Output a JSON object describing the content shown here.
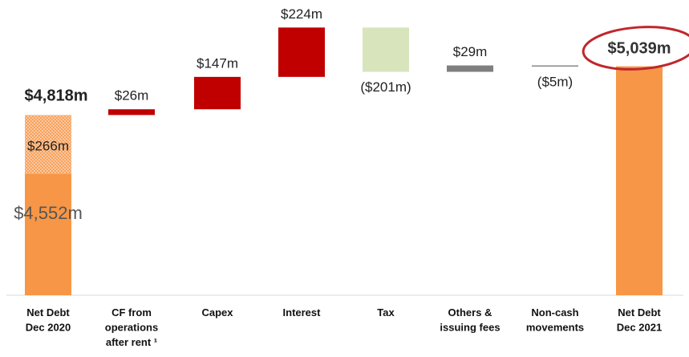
{
  "chart_data": {
    "type": "waterfall",
    "categories": [
      "Net Debt\nDec 2020",
      "CF from\noperations\nafter rent ¹",
      "Capex",
      "Interest",
      "Tax",
      "Others &\nissuing fees",
      "Non-cash\nmovements",
      "Net Debt\nDec 2021"
    ],
    "values": [
      4818,
      26,
      147,
      224,
      -201,
      29,
      -5,
      5039
    ],
    "value_labels": [
      "$4,818m",
      "$26m",
      "$147m",
      "$224m",
      "($201m)",
      "$29m",
      "($5m)",
      "$5,039m"
    ],
    "colors": [
      "#f79646",
      "#c00000",
      "#c00000",
      "#c00000",
      "#d8e4bc",
      "#7f7f7f",
      "#7f7f7f",
      "#f79646"
    ],
    "start_breakdown": {
      "values": [
        4552,
        266
      ],
      "value_labels": [
        "$4,552m",
        "$266m"
      ]
    },
    "ylim": [
      4000,
      5340
    ]
  }
}
